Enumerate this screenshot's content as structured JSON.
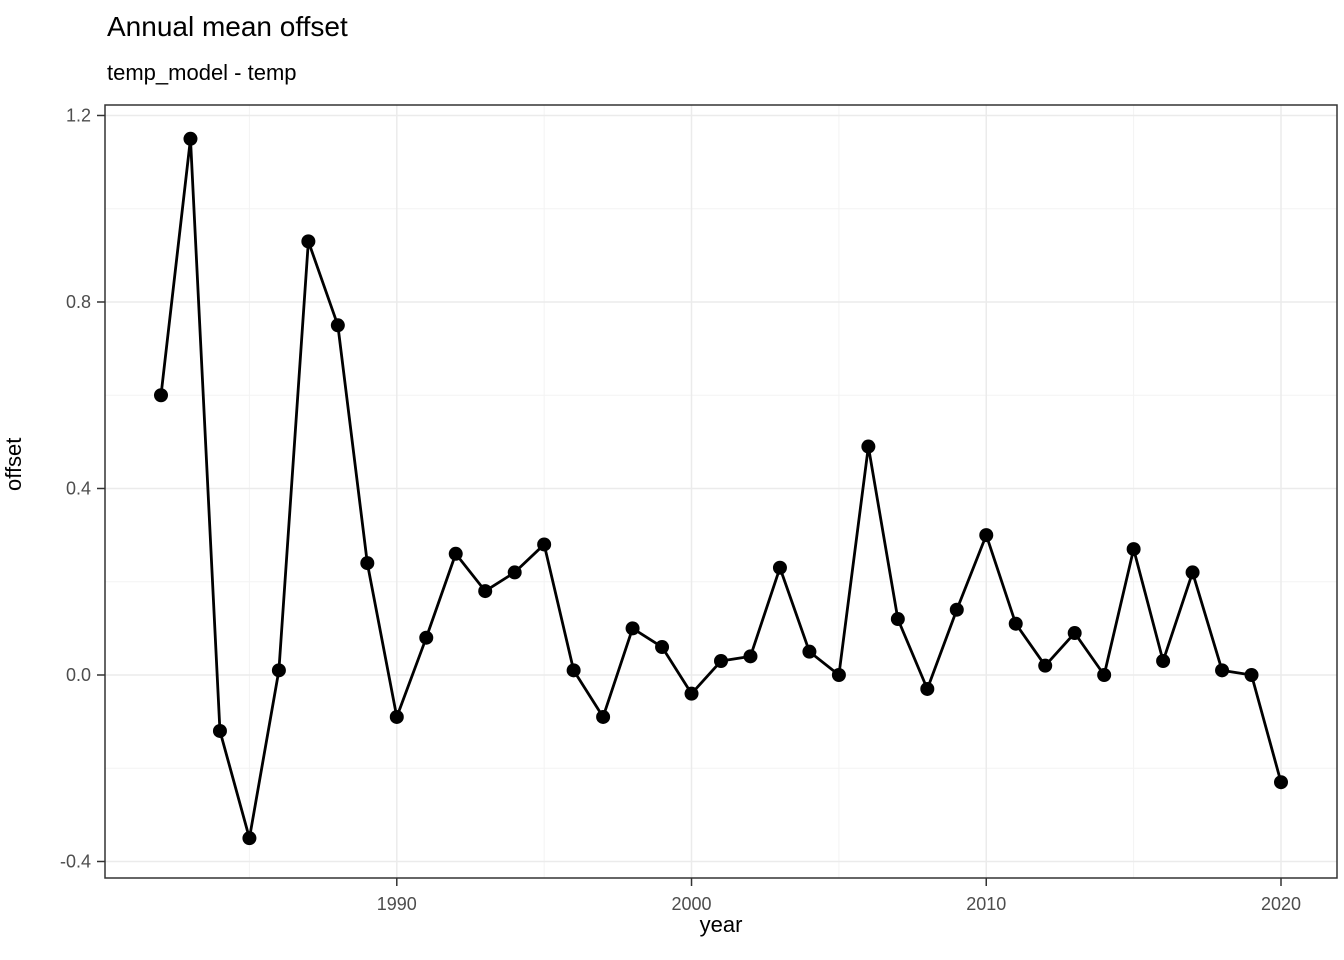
{
  "chart_data": {
    "type": "line",
    "title": "Annual mean offset",
    "subtitle": "temp_model - temp",
    "xlabel": "year",
    "ylabel": "offset",
    "x": [
      1982,
      1983,
      1984,
      1985,
      1986,
      1987,
      1988,
      1989,
      1990,
      1991,
      1992,
      1993,
      1994,
      1995,
      1996,
      1997,
      1998,
      1999,
      2000,
      2001,
      2002,
      2003,
      2004,
      2005,
      2006,
      2007,
      2008,
      2009,
      2010,
      2011,
      2012,
      2013,
      2014,
      2015,
      2016,
      2017,
      2018,
      2019,
      2020
    ],
    "y": [
      0.6,
      1.15,
      -0.12,
      -0.35,
      0.01,
      0.93,
      0.75,
      0.24,
      -0.09,
      0.08,
      0.26,
      0.18,
      0.22,
      0.28,
      0.01,
      -0.09,
      0.1,
      0.06,
      -0.04,
      0.03,
      0.04,
      0.23,
      0.05,
      0.0,
      0.49,
      0.12,
      -0.03,
      0.14,
      0.3,
      0.11,
      0.02,
      0.09,
      0.0,
      0.27,
      0.03,
      0.22,
      0.01,
      0.0,
      -0.23
    ],
    "xlim": [
      1980.1,
      2021.9
    ],
    "ylim": [
      -0.4354,
      1.2225
    ],
    "x_ticks": [
      1990,
      2000,
      2010,
      2020
    ],
    "y_ticks": [
      -0.4,
      0.0,
      0.4,
      0.8,
      1.2
    ],
    "x_minor_ticks": [
      1985,
      1995,
      2005,
      2015
    ],
    "y_minor_ticks": [
      -0.2,
      0.2,
      0.6,
      1.0
    ],
    "grid": true,
    "legend": false,
    "marker": "filled-circle",
    "colors": {
      "line": "#000000",
      "point": "#000000",
      "grid_major": "#ebebeb",
      "grid_minor": "#f3f3f3",
      "panel_border": "#333333",
      "tick_mark": "#333333",
      "tick_label": "#4d4d4d",
      "text": "#000000",
      "background": "#ffffff"
    }
  }
}
